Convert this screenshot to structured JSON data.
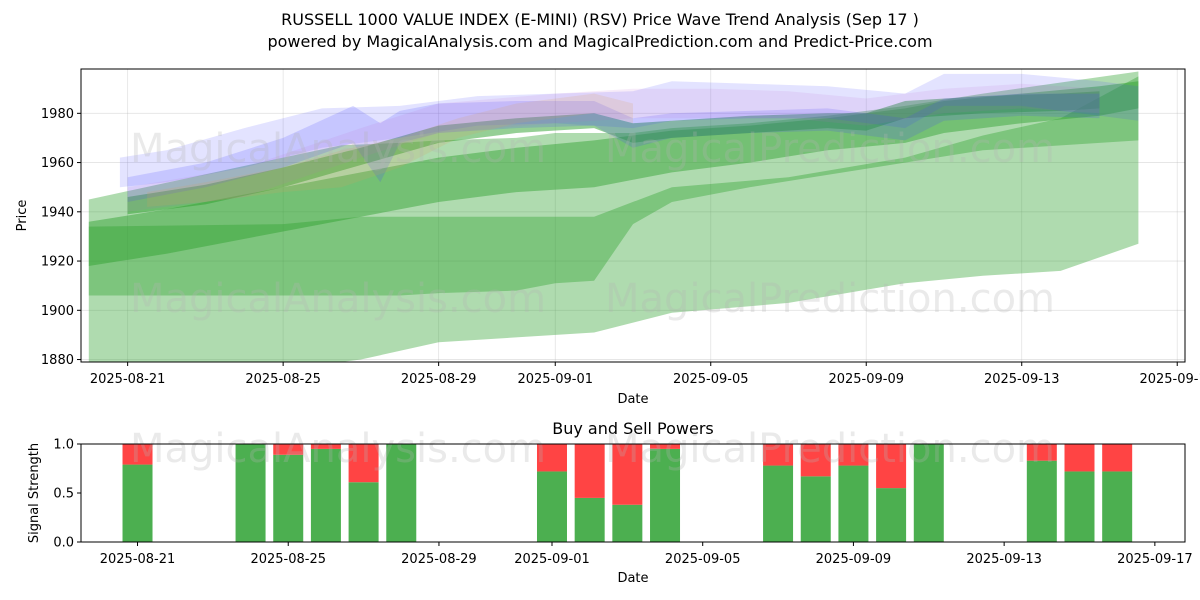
{
  "header": {
    "title": "RUSSELL 1000 VALUE INDEX (E-MINI) (RSV) Price Wave Trend Analysis (Sep 17 )",
    "subtitle": "powered by MagicalAnalysis.com and MagicalPrediction.com and Predict-Price.com"
  },
  "watermarks": [
    "MagicalAnalysis.com",
    "MagicalPrediction.com"
  ],
  "colors": {
    "green_band": "#2ca02c",
    "blue_band": "#4040ff",
    "purple_band": "#c060d0",
    "orange_band": "#d9a060",
    "buy": "#4caf50",
    "sell": "#ff4444"
  },
  "chart_data": [
    {
      "type": "area",
      "title": "",
      "xlabel": "Date",
      "ylabel": "Price",
      "ylim": [
        1879,
        1998
      ],
      "xlim": [
        "2025-08-19.8",
        "2025-09-18.2"
      ],
      "grid": true,
      "x_ticks": [
        "2025-08-21",
        "2025-08-25",
        "2025-08-29",
        "2025-09-01",
        "2025-09-05",
        "2025-09-09",
        "2025-09-13",
        "2025-09-17"
      ],
      "y_ticks": [
        1880,
        1900,
        1920,
        1940,
        1960,
        1980
      ],
      "series": [
        {
          "name": "green-wide-upper",
          "color": "green",
          "opacity": 0.38,
          "x": [
            20.0,
            25.0,
            26.5,
            28.0,
            29.0,
            31.0,
            32.0,
            33.0,
            34.0,
            35.0,
            37.0,
            39.0,
            41.0,
            43.0,
            47.0
          ],
          "upper": [
            1945,
            1962,
            1967,
            1968,
            1969,
            1970,
            1972,
            1972,
            1972,
            1974,
            1976,
            1979,
            1983,
            1988,
            1997
          ],
          "lower": [
            1906,
            1906,
            1906,
            1906,
            1907,
            1908,
            1911,
            1912,
            1935,
            1944,
            1950,
            1955,
            1960,
            1965,
            1969
          ]
        },
        {
          "name": "green-wide-lower",
          "color": "green",
          "opacity": 0.38,
          "x": [
            20.0,
            25.0,
            27.0,
            29.0,
            33.0,
            35.0,
            38.0,
            41.0,
            43.0,
            45.0,
            47.0
          ],
          "upper": [
            1934,
            1935,
            1938,
            1938,
            1938,
            1950,
            1954,
            1962,
            1971,
            1978,
            1995
          ],
          "lower": [
            1876,
            1876,
            1880,
            1887,
            1891,
            1899,
            1903,
            1911,
            1914,
            1916,
            1927
          ]
        },
        {
          "name": "green-band-main",
          "color": "green",
          "opacity": 0.45,
          "x": [
            20.0,
            22.0,
            25.0,
            27.0,
            29.0,
            31.0,
            33.0,
            34.0,
            35.0,
            37.0,
            39.0,
            41.0,
            42.0,
            44.0,
            46.0,
            47.0
          ],
          "upper": [
            1936,
            1941,
            1950,
            1956,
            1962,
            1966,
            1969,
            1971,
            1973,
            1975,
            1978,
            1982,
            1985,
            1988,
            1991,
            1993
          ],
          "lower": [
            1918,
            1923,
            1932,
            1938,
            1944,
            1948,
            1950,
            1953,
            1956,
            1960,
            1965,
            1968,
            1972,
            1976,
            1979,
            1982
          ]
        },
        {
          "name": "green-band-narrow",
          "color": "green",
          "opacity": 0.5,
          "x": [
            21.0,
            23.0,
            25.0,
            27.0,
            29.0,
            31.0,
            33.0,
            34.0,
            35.0,
            37.0,
            39.0,
            40.0,
            41.0,
            43.0,
            45.0,
            46.0
          ],
          "upper": [
            1946,
            1951,
            1958,
            1966,
            1975,
            1978,
            1980,
            1976,
            1977,
            1979,
            1980,
            1980,
            1985,
            1987,
            1988,
            1989
          ],
          "lower": [
            1939,
            1943,
            1950,
            1959,
            1968,
            1972,
            1974,
            1968,
            1970,
            1972,
            1974,
            1973,
            1978,
            1980,
            1981,
            1982
          ]
        },
        {
          "name": "blue-band-1",
          "color": "blue",
          "opacity": 0.15,
          "x": [
            20.8,
            22.0,
            24.0,
            26.0,
            28.0,
            30.0,
            32.0,
            34.0,
            35.0,
            37.0,
            39.0,
            41.0,
            42.0,
            44.0,
            46.0,
            47.0
          ],
          "upper": [
            1962,
            1965,
            1974,
            1982,
            1983,
            1987,
            1988,
            1989,
            1993,
            1992,
            1991,
            1988,
            1996,
            1996,
            1993,
            1991
          ],
          "lower": [
            1950,
            1952,
            1958,
            1966,
            1970,
            1975,
            1976,
            1974,
            1977,
            1978,
            1978,
            1974,
            1983,
            1983,
            1979,
            1977
          ]
        },
        {
          "name": "blue-band-2",
          "color": "blue",
          "opacity": 0.18,
          "x": [
            21.0,
            23.0,
            25.0,
            26.8,
            27.5,
            28.0,
            29.0,
            31.0,
            33.0,
            34.0,
            35.0,
            37.0,
            39.0,
            41.0,
            42.0,
            44.0,
            46.0
          ],
          "upper": [
            1954,
            1960,
            1970,
            1983,
            1976,
            1981,
            1984,
            1985,
            1985,
            1978,
            1980,
            1981,
            1982,
            1978,
            1986,
            1988,
            1988
          ],
          "lower": [
            1944,
            1950,
            1958,
            1968,
            1952,
            1968,
            1972,
            1974,
            1975,
            1966,
            1970,
            1972,
            1973,
            1969,
            1977,
            1979,
            1978
          ]
        },
        {
          "name": "purple-band",
          "color": "purple",
          "opacity": 0.12,
          "x": [
            21.0,
            24.0,
            27.0,
            29.0,
            32.0,
            34.0,
            36.0,
            38.0,
            40.0,
            42.0,
            44.0,
            46.0
          ],
          "upper": [
            1950,
            1958,
            1974,
            1984,
            1988,
            1990,
            1990,
            1989,
            1986,
            1990,
            1992,
            1990
          ],
          "lower": [
            1940,
            1946,
            1962,
            1972,
            1976,
            1978,
            1978,
            1978,
            1975,
            1980,
            1982,
            1980
          ]
        },
        {
          "name": "orange-band",
          "color": "orange",
          "opacity": 0.18,
          "x": [
            21.5,
            23.0,
            25.0,
            26.5,
            28.0,
            29.5,
            31.0,
            33.0,
            34.0
          ],
          "upper": [
            1948,
            1952,
            1958,
            1965,
            1970,
            1978,
            1984,
            1988,
            1984
          ],
          "lower": [
            1942,
            1944,
            1948,
            1950,
            1958,
            1970,
            1976,
            1980,
            1976
          ]
        }
      ]
    },
    {
      "type": "bar",
      "title": "Buy and Sell Powers",
      "xlabel": "Date",
      "ylabel": "Signal Strength",
      "ylim": [
        0,
        1.0
      ],
      "y_ticks": [
        "0.0",
        "0.5",
        "1.0"
      ],
      "x_ticks": [
        "2025-08-21",
        "2025-08-25",
        "2025-08-29",
        "2025-09-01",
        "2025-09-05",
        "2025-09-09",
        "2025-09-13",
        "2025-09-17"
      ],
      "categories": [
        "2025-08-21",
        "2025-08-24",
        "2025-08-25",
        "2025-08-26",
        "2025-08-27",
        "2025-08-28",
        "2025-09-01",
        "2025-09-02",
        "2025-09-03",
        "2025-09-04",
        "2025-09-07",
        "2025-09-08",
        "2025-09-09",
        "2025-09-10",
        "2025-09-11",
        "2025-09-14",
        "2025-09-15",
        "2025-09-16"
      ],
      "series": [
        {
          "name": "Buy",
          "values": [
            0.79,
            1.0,
            0.89,
            0.95,
            0.61,
            1.0,
            0.72,
            0.45,
            0.38,
            0.95,
            0.78,
            0.67,
            0.78,
            0.55,
            1.0,
            0.83,
            0.72,
            0.72
          ]
        },
        {
          "name": "Sell",
          "values": [
            0.21,
            0.0,
            0.11,
            0.05,
            0.39,
            0.0,
            0.28,
            0.55,
            0.62,
            0.05,
            0.22,
            0.33,
            0.22,
            0.45,
            0.0,
            0.17,
            0.28,
            0.28
          ]
        }
      ]
    }
  ]
}
